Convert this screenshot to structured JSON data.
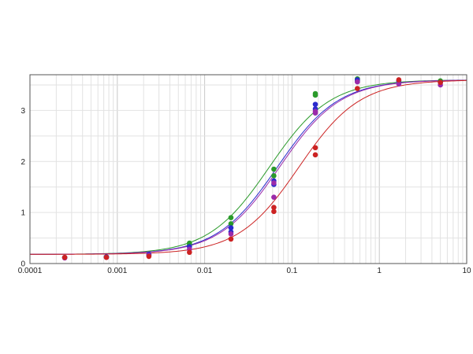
{
  "chart_data": {
    "type": "scatter",
    "xscale": "log",
    "xlim": [
      0.0001,
      10
    ],
    "ylim": [
      0,
      3.7
    ],
    "grid": true,
    "legend": "none",
    "x_tick_labels": [
      "0.0001",
      "0.001",
      "0.01",
      "0.1",
      "1",
      "10"
    ],
    "x_tick_values": [
      0.0001,
      0.001,
      0.01,
      0.1,
      1,
      10
    ],
    "y_tick_labels": [
      "0",
      "1",
      "2",
      "3"
    ],
    "y_tick_values": [
      0,
      1,
      2,
      3
    ],
    "x": [
      0.00025,
      0.00075,
      0.0023,
      0.0067,
      0.02,
      0.062,
      0.185,
      0.56,
      1.67,
      5.0
    ],
    "series": [
      {
        "color": "#2a9a2a",
        "fit": {
          "bottom": 0.18,
          "top": 3.6,
          "ec50": 0.055,
          "hill": 1.25
        },
        "points": [
          [
            0.00025,
            0.12
          ],
          [
            0.00075,
            0.13
          ],
          [
            0.0023,
            0.17
          ],
          [
            0.0067,
            0.4
          ],
          [
            0.0067,
            0.36
          ],
          [
            0.02,
            0.9
          ],
          [
            0.02,
            0.78
          ],
          [
            0.062,
            1.85
          ],
          [
            0.062,
            1.72
          ],
          [
            0.185,
            3.33
          ],
          [
            0.185,
            3.3
          ],
          [
            0.56,
            3.62
          ],
          [
            0.56,
            3.58
          ],
          [
            1.67,
            3.58
          ],
          [
            5.0,
            3.58
          ]
        ]
      },
      {
        "color": "#2a2acc",
        "fit": {
          "bottom": 0.18,
          "top": 3.6,
          "ec50": 0.068,
          "hill": 1.25
        },
        "points": [
          [
            0.00025,
            0.12
          ],
          [
            0.00075,
            0.13
          ],
          [
            0.0023,
            0.18
          ],
          [
            0.0067,
            0.33
          ],
          [
            0.02,
            0.7
          ],
          [
            0.02,
            0.62
          ],
          [
            0.062,
            1.62
          ],
          [
            0.062,
            1.55
          ],
          [
            0.185,
            3.12
          ],
          [
            0.185,
            3.03
          ],
          [
            0.56,
            3.6
          ],
          [
            1.67,
            3.58
          ],
          [
            5.0,
            3.55
          ]
        ]
      },
      {
        "color": "#9a2aaa",
        "fit": {
          "bottom": 0.18,
          "top": 3.6,
          "ec50": 0.072,
          "hill": 1.25
        },
        "points": [
          [
            0.00025,
            0.11
          ],
          [
            0.00075,
            0.12
          ],
          [
            0.0023,
            0.16
          ],
          [
            0.0067,
            0.28
          ],
          [
            0.02,
            0.58
          ],
          [
            0.062,
            1.3
          ],
          [
            0.062,
            1.58
          ],
          [
            0.185,
            2.98
          ],
          [
            0.185,
            2.95
          ],
          [
            0.56,
            3.56
          ],
          [
            1.67,
            3.52
          ],
          [
            5.0,
            3.5
          ]
        ]
      },
      {
        "color": "#cc2222",
        "fit": {
          "bottom": 0.18,
          "top": 3.6,
          "ec50": 0.12,
          "hill": 1.25
        },
        "points": [
          [
            0.00025,
            0.12
          ],
          [
            0.00075,
            0.12
          ],
          [
            0.0023,
            0.14
          ],
          [
            0.0067,
            0.22
          ],
          [
            0.02,
            0.48
          ],
          [
            0.062,
            1.1
          ],
          [
            0.062,
            1.02
          ],
          [
            0.185,
            2.27
          ],
          [
            0.185,
            2.13
          ],
          [
            0.56,
            3.43
          ],
          [
            1.67,
            3.6
          ],
          [
            5.0,
            3.55
          ]
        ]
      }
    ]
  }
}
